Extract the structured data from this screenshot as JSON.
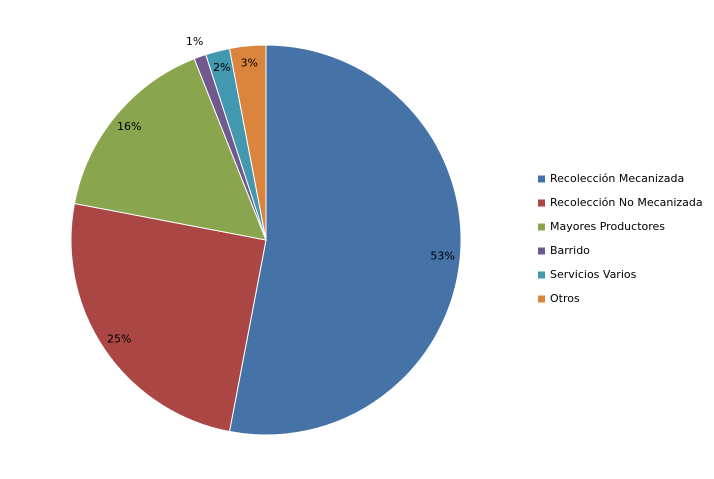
{
  "chart_data": {
    "type": "pie",
    "categories": [
      "Recolección Mecanizada",
      "Recolección No Mecanizada",
      "Mayores Productores",
      "Barrido",
      "Servicios Varios",
      "Otros"
    ],
    "values": [
      53,
      25,
      16,
      1,
      2,
      3
    ],
    "value_labels": [
      "53%",
      "25%",
      "16%",
      "1%",
      "2%",
      "3%"
    ],
    "colors": [
      "#4572A7",
      "#AA4643",
      "#89A54E",
      "#71588F",
      "#4198AF",
      "#DB843D"
    ],
    "legend": "right"
  }
}
